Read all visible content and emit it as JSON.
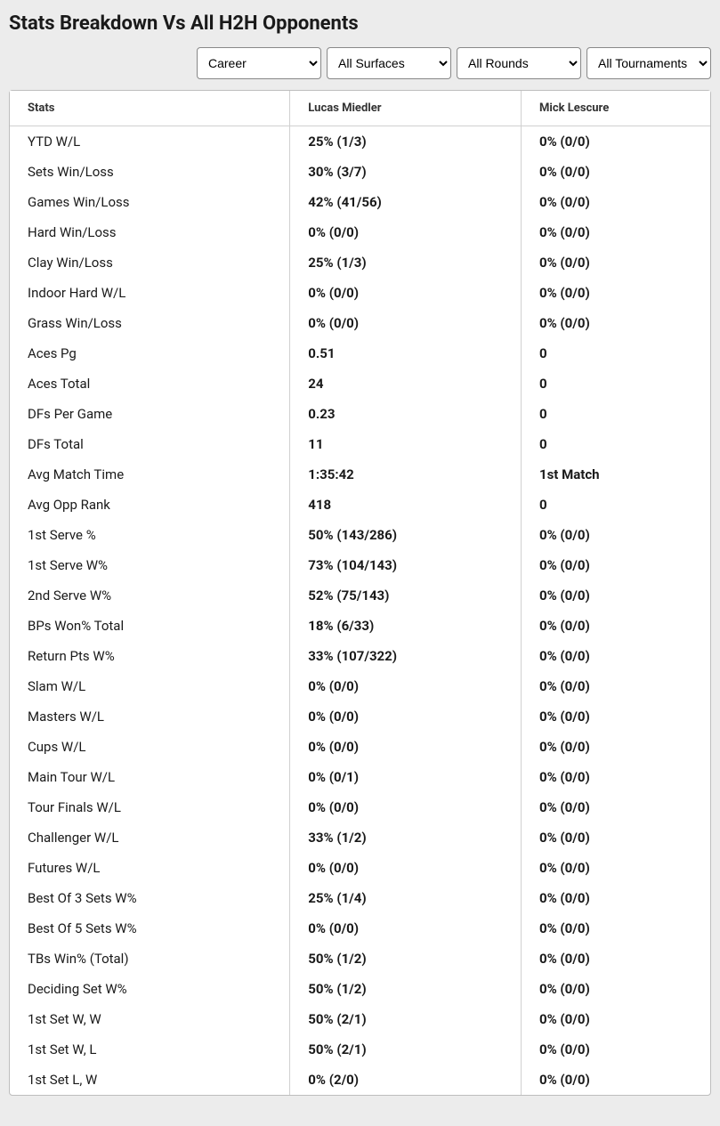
{
  "title": "Stats Breakdown Vs All H2H Opponents",
  "filters": {
    "career": "Career",
    "surfaces": "All Surfaces",
    "rounds": "All Rounds",
    "tournaments": "All Tournaments"
  },
  "table": {
    "columns": [
      "Stats",
      "Lucas Miedler",
      "Mick Lescure"
    ],
    "rows": [
      [
        "YTD W/L",
        "25% (1/3)",
        "0% (0/0)"
      ],
      [
        "Sets Win/Loss",
        "30% (3/7)",
        "0% (0/0)"
      ],
      [
        "Games Win/Loss",
        "42% (41/56)",
        "0% (0/0)"
      ],
      [
        "Hard Win/Loss",
        "0% (0/0)",
        "0% (0/0)"
      ],
      [
        "Clay Win/Loss",
        "25% (1/3)",
        "0% (0/0)"
      ],
      [
        "Indoor Hard W/L",
        "0% (0/0)",
        "0% (0/0)"
      ],
      [
        "Grass Win/Loss",
        "0% (0/0)",
        "0% (0/0)"
      ],
      [
        "Aces Pg",
        "0.51",
        "0"
      ],
      [
        "Aces Total",
        "24",
        "0"
      ],
      [
        "DFs Per Game",
        "0.23",
        "0"
      ],
      [
        "DFs Total",
        "11",
        "0"
      ],
      [
        "Avg Match Time",
        "1:35:42",
        "1st Match"
      ],
      [
        "Avg Opp Rank",
        "418",
        "0"
      ],
      [
        "1st Serve %",
        "50% (143/286)",
        "0% (0/0)"
      ],
      [
        "1st Serve W%",
        "73% (104/143)",
        "0% (0/0)"
      ],
      [
        "2nd Serve W%",
        "52% (75/143)",
        "0% (0/0)"
      ],
      [
        "BPs Won% Total",
        "18% (6/33)",
        "0% (0/0)"
      ],
      [
        "Return Pts W%",
        "33% (107/322)",
        "0% (0/0)"
      ],
      [
        "Slam W/L",
        "0% (0/0)",
        "0% (0/0)"
      ],
      [
        "Masters W/L",
        "0% (0/0)",
        "0% (0/0)"
      ],
      [
        "Cups W/L",
        "0% (0/0)",
        "0% (0/0)"
      ],
      [
        "Main Tour W/L",
        "0% (0/1)",
        "0% (0/0)"
      ],
      [
        "Tour Finals W/L",
        "0% (0/0)",
        "0% (0/0)"
      ],
      [
        "Challenger W/L",
        "33% (1/2)",
        "0% (0/0)"
      ],
      [
        "Futures W/L",
        "0% (0/0)",
        "0% (0/0)"
      ],
      [
        "Best Of 3 Sets W%",
        "25% (1/4)",
        "0% (0/0)"
      ],
      [
        "Best Of 5 Sets W%",
        "0% (0/0)",
        "0% (0/0)"
      ],
      [
        "TBs Win% (Total)",
        "50% (1/2)",
        "0% (0/0)"
      ],
      [
        "Deciding Set W%",
        "50% (1/2)",
        "0% (0/0)"
      ],
      [
        "1st Set W, W",
        "50% (2/1)",
        "0% (0/0)"
      ],
      [
        "1st Set W, L",
        "50% (2/1)",
        "0% (0/0)"
      ],
      [
        "1st Set L, W",
        "0% (2/0)",
        "0% (0/0)"
      ]
    ]
  }
}
